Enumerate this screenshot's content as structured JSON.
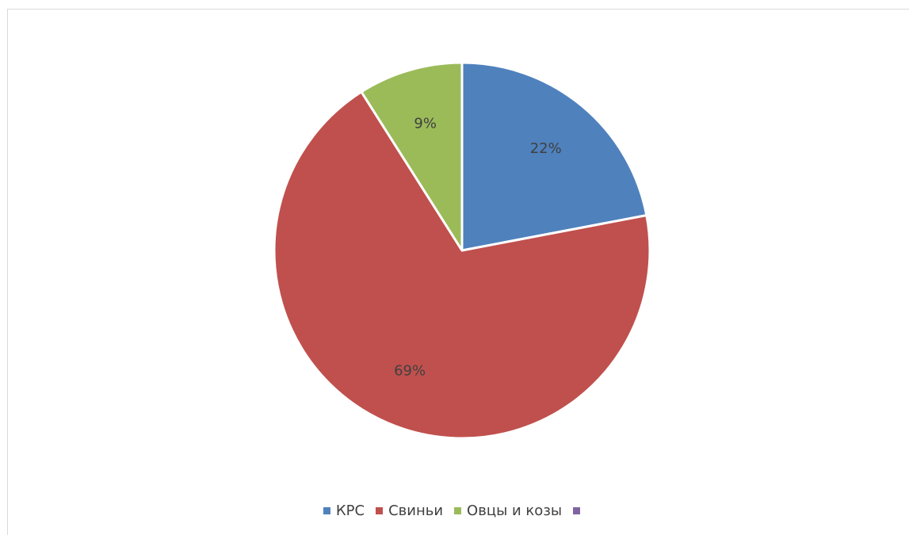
{
  "chart_data": {
    "type": "pie",
    "categories": [
      "КРС",
      "Свиньи",
      "Овцы и козы",
      ""
    ],
    "values": [
      22,
      69,
      9,
      0
    ],
    "data_labels": [
      "22%",
      "69%",
      "9%",
      ""
    ],
    "colors": [
      "#4f81bd",
      "#c0504d",
      "#9bbb59",
      "#8064a2"
    ],
    "start_angle_deg": 0,
    "legend_position": "bottom"
  }
}
